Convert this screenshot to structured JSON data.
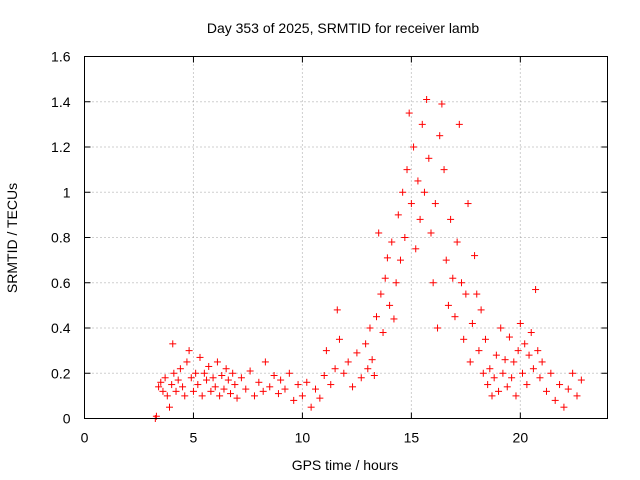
{
  "chart_data": {
    "type": "scatter",
    "title": "Day 353 of 2025, SRMTID for receiver lamb",
    "xlabel": "GPS time / hours",
    "ylabel": "SRMTID / TECUs",
    "xlim": [
      0,
      24
    ],
    "ylim": [
      0,
      1.6
    ],
    "xticks": [
      0,
      5,
      10,
      15,
      20
    ],
    "xtick_labels": [
      "0",
      "5",
      "10",
      "15",
      "20"
    ],
    "yticks": [
      0,
      0.2,
      0.4,
      0.6,
      0.8,
      1.0,
      1.2,
      1.4,
      1.6
    ],
    "ytick_labels": [
      "0",
      "0.2",
      "0.4",
      "0.6",
      "0.8",
      "1",
      "1.2",
      "1.4",
      "1.6"
    ],
    "grid": true,
    "marker": "plus",
    "color": "#ff0000",
    "series": [
      {
        "name": "SRMTID",
        "points": [
          [
            3.25,
            0.0
          ],
          [
            3.3,
            0.01
          ],
          [
            3.4,
            0.14
          ],
          [
            3.5,
            0.16
          ],
          [
            3.6,
            0.12
          ],
          [
            3.7,
            0.18
          ],
          [
            3.8,
            0.1
          ],
          [
            3.9,
            0.05
          ],
          [
            4.0,
            0.15
          ],
          [
            4.05,
            0.33
          ],
          [
            4.1,
            0.2
          ],
          [
            4.2,
            0.12
          ],
          [
            4.3,
            0.17
          ],
          [
            4.4,
            0.22
          ],
          [
            4.5,
            0.14
          ],
          [
            4.6,
            0.1
          ],
          [
            4.7,
            0.25
          ],
          [
            4.8,
            0.3
          ],
          [
            4.9,
            0.18
          ],
          [
            5.0,
            0.12
          ],
          [
            5.1,
            0.2
          ],
          [
            5.2,
            0.15
          ],
          [
            5.3,
            0.27
          ],
          [
            5.4,
            0.1
          ],
          [
            5.5,
            0.2
          ],
          [
            5.6,
            0.17
          ],
          [
            5.7,
            0.23
          ],
          [
            5.8,
            0.12
          ],
          [
            5.9,
            0.18
          ],
          [
            6.0,
            0.14
          ],
          [
            6.1,
            0.25
          ],
          [
            6.2,
            0.1
          ],
          [
            6.3,
            0.19
          ],
          [
            6.4,
            0.13
          ],
          [
            6.5,
            0.22
          ],
          [
            6.6,
            0.17
          ],
          [
            6.7,
            0.11
          ],
          [
            6.8,
            0.2
          ],
          [
            6.9,
            0.15
          ],
          [
            7.0,
            0.09
          ],
          [
            7.2,
            0.18
          ],
          [
            7.4,
            0.13
          ],
          [
            7.6,
            0.21
          ],
          [
            7.8,
            0.1
          ],
          [
            8.0,
            0.16
          ],
          [
            8.2,
            0.12
          ],
          [
            8.3,
            0.25
          ],
          [
            8.5,
            0.14
          ],
          [
            8.7,
            0.19
          ],
          [
            8.9,
            0.11
          ],
          [
            9.0,
            0.17
          ],
          [
            9.2,
            0.13
          ],
          [
            9.4,
            0.2
          ],
          [
            9.6,
            0.08
          ],
          [
            9.8,
            0.15
          ],
          [
            10.0,
            0.1
          ],
          [
            10.2,
            0.16
          ],
          [
            10.4,
            0.05
          ],
          [
            10.6,
            0.13
          ],
          [
            10.8,
            0.09
          ],
          [
            11.0,
            0.19
          ],
          [
            11.1,
            0.3
          ],
          [
            11.3,
            0.15
          ],
          [
            11.5,
            0.22
          ],
          [
            11.6,
            0.48
          ],
          [
            11.7,
            0.35
          ],
          [
            11.9,
            0.2
          ],
          [
            12.1,
            0.25
          ],
          [
            12.3,
            0.14
          ],
          [
            12.5,
            0.29
          ],
          [
            12.7,
            0.18
          ],
          [
            12.9,
            0.33
          ],
          [
            13.0,
            0.22
          ],
          [
            13.1,
            0.4
          ],
          [
            13.2,
            0.26
          ],
          [
            13.3,
            0.19
          ],
          [
            13.4,
            0.45
          ],
          [
            13.5,
            0.82
          ],
          [
            13.6,
            0.55
          ],
          [
            13.7,
            0.38
          ],
          [
            13.8,
            0.62
          ],
          [
            13.9,
            0.71
          ],
          [
            14.0,
            0.5
          ],
          [
            14.1,
            0.78
          ],
          [
            14.2,
            0.44
          ],
          [
            14.3,
            0.6
          ],
          [
            14.4,
            0.9
          ],
          [
            14.5,
            0.7
          ],
          [
            14.6,
            1.0
          ],
          [
            14.7,
            0.8
          ],
          [
            14.8,
            1.1
          ],
          [
            14.9,
            1.35
          ],
          [
            15.0,
            0.95
          ],
          [
            15.1,
            1.2
          ],
          [
            15.2,
            0.75
          ],
          [
            15.3,
            1.05
          ],
          [
            15.4,
            0.88
          ],
          [
            15.5,
            1.3
          ],
          [
            15.6,
            1.0
          ],
          [
            15.7,
            1.41
          ],
          [
            15.8,
            1.15
          ],
          [
            15.9,
            0.82
          ],
          [
            16.0,
            0.6
          ],
          [
            16.1,
            0.95
          ],
          [
            16.2,
            0.4
          ],
          [
            16.3,
            1.25
          ],
          [
            16.4,
            1.39
          ],
          [
            16.5,
            1.1
          ],
          [
            16.6,
            0.7
          ],
          [
            16.7,
            0.5
          ],
          [
            16.8,
            0.88
          ],
          [
            16.9,
            0.62
          ],
          [
            17.0,
            0.45
          ],
          [
            17.1,
            0.78
          ],
          [
            17.2,
            1.3
          ],
          [
            17.3,
            0.6
          ],
          [
            17.4,
            0.35
          ],
          [
            17.5,
            0.55
          ],
          [
            17.6,
            0.95
          ],
          [
            17.7,
            0.25
          ],
          [
            17.8,
            0.42
          ],
          [
            17.9,
            0.72
          ],
          [
            18.0,
            0.55
          ],
          [
            18.1,
            0.3
          ],
          [
            18.2,
            0.48
          ],
          [
            18.3,
            0.2
          ],
          [
            18.4,
            0.35
          ],
          [
            18.5,
            0.15
          ],
          [
            18.6,
            0.22
          ],
          [
            18.7,
            0.1
          ],
          [
            18.8,
            0.18
          ],
          [
            18.9,
            0.28
          ],
          [
            19.0,
            0.12
          ],
          [
            19.1,
            0.4
          ],
          [
            19.2,
            0.2
          ],
          [
            19.3,
            0.26
          ],
          [
            19.4,
            0.14
          ],
          [
            19.5,
            0.36
          ],
          [
            19.6,
            0.18
          ],
          [
            19.7,
            0.25
          ],
          [
            19.8,
            0.1
          ],
          [
            19.9,
            0.3
          ],
          [
            20.0,
            0.42
          ],
          [
            20.1,
            0.2
          ],
          [
            20.2,
            0.33
          ],
          [
            20.3,
            0.15
          ],
          [
            20.4,
            0.28
          ],
          [
            20.5,
            0.38
          ],
          [
            20.6,
            0.22
          ],
          [
            20.7,
            0.57
          ],
          [
            20.8,
            0.3
          ],
          [
            20.9,
            0.18
          ],
          [
            21.0,
            0.25
          ],
          [
            21.2,
            0.12
          ],
          [
            21.4,
            0.2
          ],
          [
            21.6,
            0.08
          ],
          [
            21.8,
            0.15
          ],
          [
            22.0,
            0.05
          ],
          [
            22.2,
            0.13
          ],
          [
            22.4,
            0.2
          ],
          [
            22.6,
            0.1
          ],
          [
            22.8,
            0.17
          ]
        ]
      }
    ]
  }
}
